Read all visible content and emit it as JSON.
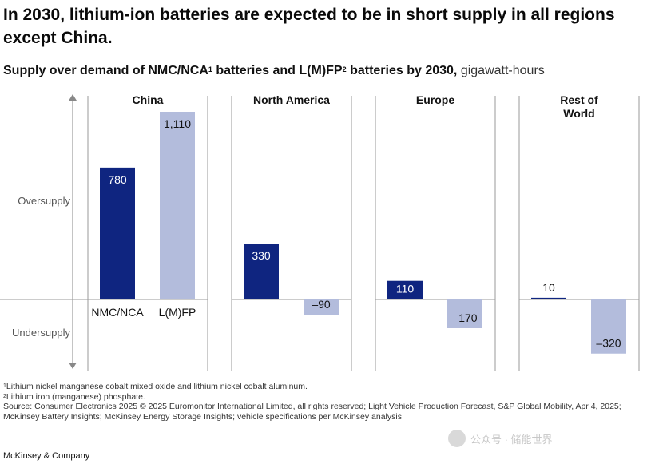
{
  "title": "In 2030, lithium-ion batteries are expected to be in short supply in all regions except China.",
  "subtitle": {
    "part1": "Supply over demand of NMC/NCA",
    "sup1": "1",
    "part2": " batteries and L(M)FP",
    "sup2": "2",
    "part3": " batteries by 2030,",
    "unit": " gigawatt-hours"
  },
  "colors": {
    "nmc": "#0f2580",
    "lfp": "#b3bcdc",
    "axis": "#888888"
  },
  "chart_data": {
    "type": "bar",
    "title": "Supply over demand of NMC/NCA batteries and L(M)FP batteries by 2030",
    "unit": "gigawatt-hours",
    "y_axis_labels": {
      "positive": "Oversupply",
      "negative": "Undersupply"
    },
    "categories": [
      "China",
      "North America",
      "Europe",
      "Rest of World"
    ],
    "category_lines": [
      [
        "China"
      ],
      [
        "North America"
      ],
      [
        "Europe"
      ],
      [
        "Rest of",
        "World"
      ]
    ],
    "series": [
      {
        "name": "NMC/NCA",
        "values": [
          780,
          330,
          110,
          10
        ],
        "labels": [
          "780",
          "330",
          "110",
          "10"
        ]
      },
      {
        "name": "L(M)FP",
        "values": [
          1110,
          -90,
          -170,
          -320
        ],
        "labels": [
          "1,110",
          "–90",
          "–170",
          "–320"
        ]
      }
    ],
    "ylim": [
      -400,
      1110
    ]
  },
  "footnotes": {
    "f1_sup": "1",
    "f1": "Lithium nickel manganese cobalt mixed oxide and lithium nickel cobalt aluminum.",
    "f2_sup": "2",
    "f2": "Lithium iron (manganese) phosphate.",
    "source": "Source: Consumer Electronics 2025 © 2025 Euromonitor International Limited, all rights reserved; Light Vehicle Production Forecast, S&P Global Mobility, Apr 4, 2025; McKinsey Battery Insights; McKinsey Energy Storage Insights; vehicle specifications per McKinsey analysis"
  },
  "brand": "McKinsey & Company",
  "watermark": "公众号 · 储能世界"
}
